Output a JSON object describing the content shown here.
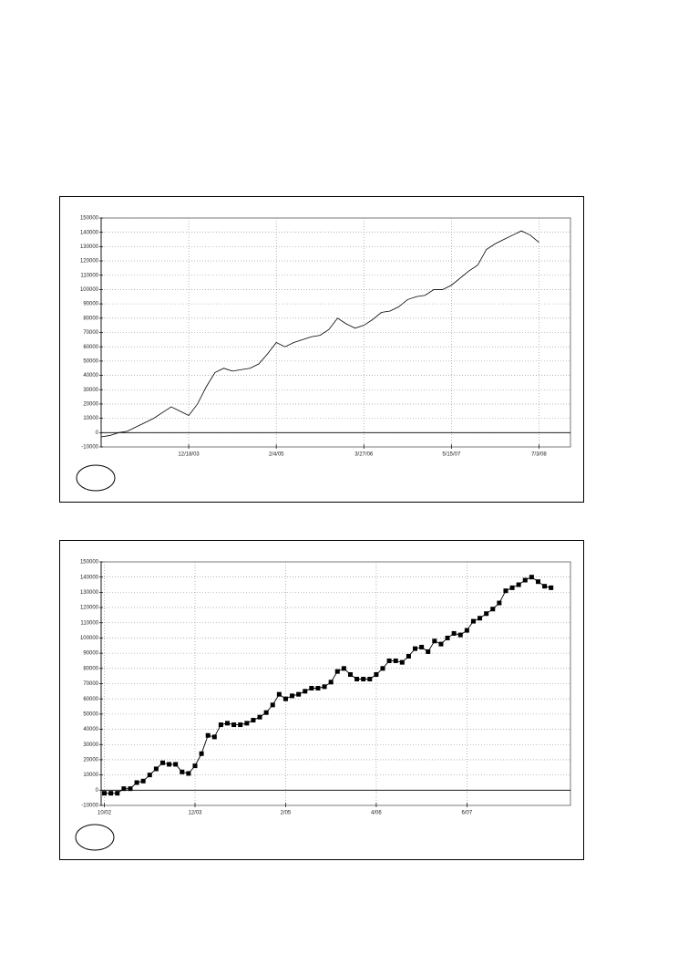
{
  "chart_data": [
    {
      "type": "line",
      "color": "#000000",
      "grid": true,
      "markers": false,
      "x": [
        0,
        1,
        2,
        3,
        4,
        5,
        6,
        7,
        8,
        9,
        10,
        11,
        12,
        13,
        14,
        15,
        16,
        17,
        18,
        19,
        20,
        21,
        22,
        23,
        24,
        25,
        26,
        27,
        28,
        29,
        30,
        31,
        32,
        33,
        34,
        35,
        36,
        37,
        38,
        39,
        40,
        41,
        42,
        43,
        44,
        45,
        46,
        47,
        48,
        49,
        50
      ],
      "values": [
        -3000,
        -2000,
        0,
        1000,
        4000,
        7000,
        10000,
        14000,
        18000,
        15000,
        12000,
        20000,
        32000,
        42000,
        45000,
        43000,
        44000,
        45000,
        48000,
        55000,
        63000,
        60000,
        63000,
        65000,
        67000,
        68000,
        72000,
        80000,
        76000,
        73000,
        75000,
        79000,
        84000,
        85000,
        88000,
        93000,
        95000,
        96000,
        100000,
        100000,
        103000,
        108000,
        113000,
        117000,
        128000,
        132000,
        135000,
        138000,
        141000,
        138000,
        133000
      ],
      "xlim": [
        0,
        53.6
      ],
      "xticks": [
        {
          "value": 10,
          "label": "12/18/03"
        },
        {
          "value": 20,
          "label": "2/4/05"
        },
        {
          "value": 30,
          "label": "3/27/06"
        },
        {
          "value": 40,
          "label": "5/15/07"
        },
        {
          "value": 50,
          "label": "7/3/08"
        }
      ],
      "ylim": [
        -10000,
        150000
      ],
      "yticks": [
        -10000,
        0,
        10000,
        20000,
        30000,
        40000,
        50000,
        60000,
        70000,
        80000,
        90000,
        100000,
        110000,
        120000,
        130000,
        140000,
        150000
      ]
    },
    {
      "type": "line",
      "color": "#000000",
      "grid": true,
      "markers": true,
      "x": [
        0,
        1,
        2,
        3,
        4,
        5,
        6,
        7,
        8,
        9,
        10,
        11,
        12,
        13,
        14,
        15,
        16,
        17,
        18,
        19,
        20,
        21,
        22,
        23,
        24,
        25,
        26,
        27,
        28,
        29,
        30,
        31,
        32,
        33,
        34,
        35,
        36,
        37,
        38,
        39,
        40,
        41,
        42,
        43,
        44,
        45,
        46,
        47,
        48,
        49,
        50,
        51,
        52,
        53,
        54,
        55,
        56,
        57,
        58,
        59,
        60,
        61,
        62,
        63,
        64,
        65,
        66,
        67,
        68,
        69
      ],
      "values": [
        -2000,
        -2000,
        -2000,
        1000,
        1000,
        5000,
        6000,
        10000,
        14000,
        18000,
        17000,
        17000,
        12000,
        11000,
        16000,
        24000,
        36000,
        35000,
        43000,
        44000,
        43000,
        43000,
        44000,
        46000,
        48000,
        51000,
        56000,
        63000,
        60000,
        62000,
        63000,
        65000,
        67000,
        67000,
        68000,
        71000,
        78000,
        80000,
        76000,
        73000,
        73000,
        73000,
        76000,
        80000,
        85000,
        85000,
        84000,
        88000,
        93000,
        94000,
        91000,
        98000,
        96000,
        100000,
        103000,
        102000,
        105000,
        111000,
        113000,
        116000,
        119000,
        123000,
        131000,
        133000,
        135000,
        138000,
        140000,
        137000,
        134000,
        133000
      ],
      "xlim": [
        -0.5,
        72
      ],
      "xticks": [
        {
          "value": 0,
          "label": "10/02"
        },
        {
          "value": 14,
          "label": "12/03"
        },
        {
          "value": 28,
          "label": "2/05"
        },
        {
          "value": 42,
          "label": "4/06"
        },
        {
          "value": 56,
          "label": "6/07"
        }
      ],
      "ylim": [
        -10000,
        150000
      ],
      "yticks": [
        -10000,
        0,
        10000,
        20000,
        30000,
        40000,
        50000,
        60000,
        70000,
        80000,
        90000,
        100000,
        110000,
        120000,
        130000,
        140000,
        150000
      ]
    }
  ]
}
